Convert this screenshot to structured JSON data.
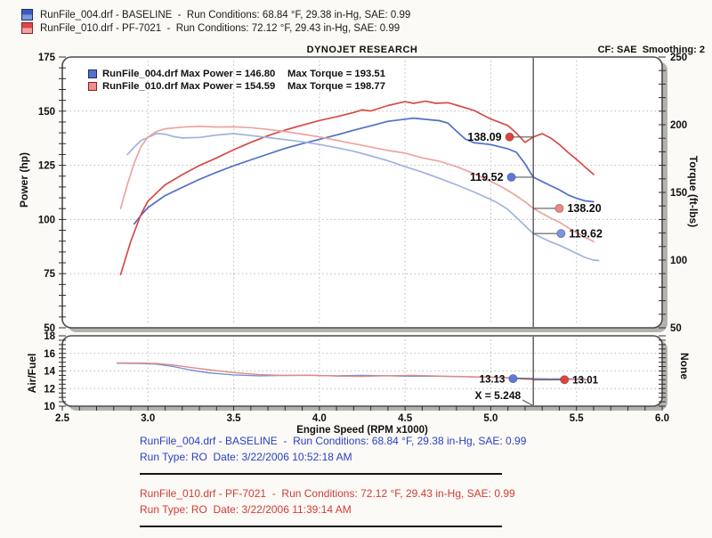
{
  "header": {
    "brand": "DYNOJET RESEARCH",
    "cf_smoothing": "CF: SAE  Smoothing: 2"
  },
  "top_legend": [
    {
      "swatch": "blue",
      "text": "RunFile_004.drf - BASELINE  -  Run Conditions: 68.84 °F, 29.38 in-Hg, SAE: 0.99"
    },
    {
      "swatch": "red",
      "text": "RunFile_010.drf - PF-7021  -  Run Conditions: 72.12 °F, 29.43 in-Hg, SAE: 0.99"
    }
  ],
  "inner_legend": [
    {
      "swatch": "blue",
      "file_power": "RunFile_004.drf Max Power = 146.80",
      "max_torque": "Max Torque = 193.51"
    },
    {
      "swatch": "red",
      "file_power": "RunFile_010.drf Max Power = 154.59",
      "max_torque": "Max Torque = 198.77"
    }
  ],
  "footer_runs": [
    {
      "line1": "RunFile_004.drf - BASELINE  -  Run Conditions: 68.84 °F, 29.38 in-Hg, SAE: 0.99",
      "line2": "Run Type: RO  Date: 3/22/2006 10:52:18 AM"
    },
    {
      "line1": "RunFile_010.drf - PF-7021  -  Run Conditions: 72.12 °F, 29.43 in-Hg, SAE: 0.99",
      "line2": "Run Type: RO  Date: 3/22/2006 11:39:14 AM"
    }
  ],
  "colors": {
    "power_004": "#4f6fc5",
    "power_010": "#d84b45",
    "torque_004": "#9fb3e0",
    "torque_010": "#eda4a0",
    "af_004": "#7b8fd2",
    "af_010": "#e08a85",
    "footer_blue": "#2b3fc4",
    "footer_red": "#d23c34"
  },
  "chart_data": [
    {
      "type": "line",
      "title": "Power and Torque vs Engine Speed",
      "x": {
        "label": "Engine Speed (RPM x1000)",
        "min": 2.5,
        "max": 6.0,
        "ticks": [
          2.5,
          3.0,
          3.5,
          4.0,
          4.5,
          5.0,
          5.5,
          6.0
        ]
      },
      "y_left": {
        "label": "Power (hp)",
        "min": 50,
        "max": 175,
        "ticks": [
          175,
          150,
          125,
          100,
          75,
          50
        ]
      },
      "y_right": {
        "label": "Torque (ft-lbs)",
        "min": 50,
        "max": 250,
        "ticks": [
          250,
          200,
          150,
          100,
          50
        ]
      },
      "grid": true,
      "cursor_x": 5.248,
      "series": [
        {
          "name": "power-004",
          "axis": "left",
          "color": "#4f6fc5",
          "points": [
            [
              2.92,
              98
            ],
            [
              2.96,
              102
            ],
            [
              3.0,
              105.5
            ],
            [
              3.1,
              111
            ],
            [
              3.2,
              114.8
            ],
            [
              3.3,
              118.5
            ],
            [
              3.4,
              121.8
            ],
            [
              3.5,
              124.8
            ],
            [
              3.6,
              127.5
            ],
            [
              3.7,
              130.2
            ],
            [
              3.8,
              132.8
            ],
            [
              3.9,
              135
            ],
            [
              4.0,
              137
            ],
            [
              4.1,
              139
            ],
            [
              4.2,
              141.2
            ],
            [
              4.3,
              143.2
            ],
            [
              4.4,
              145.3
            ],
            [
              4.5,
              146.3
            ],
            [
              4.55,
              146.8
            ],
            [
              4.6,
              146.4
            ],
            [
              4.7,
              145.6
            ],
            [
              4.75,
              144.5
            ],
            [
              4.8,
              140.8
            ],
            [
              4.85,
              137.2
            ],
            [
              4.9,
              135.5
            ],
            [
              5.0,
              134.6
            ],
            [
              5.1,
              132.6
            ],
            [
              5.15,
              131
            ],
            [
              5.2,
              125.7
            ],
            [
              5.248,
              119.52
            ],
            [
              5.3,
              117.5
            ],
            [
              5.35,
              115.6
            ],
            [
              5.4,
              113.7
            ],
            [
              5.45,
              111.4
            ],
            [
              5.5,
              109.8
            ],
            [
              5.55,
              108.6
            ],
            [
              5.6,
              108.2
            ]
          ]
        },
        {
          "name": "power-010",
          "axis": "left",
          "color": "#d84b45",
          "points": [
            [
              2.84,
              74.6
            ],
            [
              2.9,
              90
            ],
            [
              2.96,
              102.5
            ],
            [
              3.0,
              108.5
            ],
            [
              3.1,
              116
            ],
            [
              3.2,
              120.7
            ],
            [
              3.3,
              124.9
            ],
            [
              3.4,
              128.4
            ],
            [
              3.5,
              132.2
            ],
            [
              3.6,
              135.6
            ],
            [
              3.7,
              138.7
            ],
            [
              3.8,
              141.3
            ],
            [
              3.9,
              143.5
            ],
            [
              4.0,
              145.7
            ],
            [
              4.1,
              147.4
            ],
            [
              4.2,
              149.4
            ],
            [
              4.25,
              150.6
            ],
            [
              4.3,
              150.1
            ],
            [
              4.4,
              152.6
            ],
            [
              4.5,
              154.4
            ],
            [
              4.55,
              153.6
            ],
            [
              4.62,
              154.59
            ],
            [
              4.68,
              153.6
            ],
            [
              4.75,
              153.9
            ],
            [
              4.8,
              152.8
            ],
            [
              4.9,
              150.4
            ],
            [
              5.0,
              146.4
            ],
            [
              5.1,
              143.4
            ],
            [
              5.15,
              139.8
            ],
            [
              5.2,
              135.6
            ],
            [
              5.248,
              138.09
            ],
            [
              5.3,
              139.6
            ],
            [
              5.35,
              137.6
            ],
            [
              5.4,
              134.6
            ],
            [
              5.45,
              131
            ],
            [
              5.5,
              127.8
            ],
            [
              5.55,
              124.2
            ],
            [
              5.6,
              120.8
            ]
          ]
        },
        {
          "name": "torque-004",
          "axis": "right",
          "color": "#9fb3e0",
          "points": [
            [
              2.88,
              178
            ],
            [
              2.92,
              183.5
            ],
            [
              2.96,
              188.5
            ],
            [
              3.0,
              190.5
            ],
            [
              3.05,
              193.5
            ],
            [
              3.1,
              193
            ],
            [
              3.15,
              191.2
            ],
            [
              3.2,
              190.2
            ],
            [
              3.3,
              190.6
            ],
            [
              3.4,
              192.4
            ],
            [
              3.5,
              193.4
            ],
            [
              3.6,
              192
            ],
            [
              3.7,
              190.5
            ],
            [
              3.8,
              189
            ],
            [
              3.9,
              187.4
            ],
            [
              4.0,
              185.4
            ],
            [
              4.1,
              183
            ],
            [
              4.2,
              180.4
            ],
            [
              4.3,
              177
            ],
            [
              4.4,
              173.4
            ],
            [
              4.5,
              169
            ],
            [
              4.6,
              165
            ],
            [
              4.7,
              160.4
            ],
            [
              4.8,
              155.6
            ],
            [
              4.9,
              150.4
            ],
            [
              5.0,
              144.8
            ],
            [
              5.05,
              141.5
            ],
            [
              5.1,
              137.4
            ],
            [
              5.15,
              131.4
            ],
            [
              5.2,
              125.4
            ],
            [
              5.248,
              119.62
            ],
            [
              5.3,
              116.4
            ],
            [
              5.35,
              113.4
            ],
            [
              5.4,
              111
            ],
            [
              5.45,
              108
            ],
            [
              5.5,
              105
            ],
            [
              5.55,
              102
            ],
            [
              5.6,
              100
            ],
            [
              5.63,
              99.7
            ]
          ]
        },
        {
          "name": "torque-010",
          "axis": "right",
          "color": "#eda4a0",
          "points": [
            [
              2.84,
              138
            ],
            [
              2.88,
              156
            ],
            [
              2.92,
              172
            ],
            [
              2.96,
              184
            ],
            [
              3.0,
              191
            ],
            [
              3.05,
              195
            ],
            [
              3.1,
              197
            ],
            [
              3.2,
              198.2
            ],
            [
              3.3,
              198.77
            ],
            [
              3.4,
              198.3
            ],
            [
              3.5,
              198.4
            ],
            [
              3.6,
              197.8
            ],
            [
              3.7,
              196.5
            ],
            [
              3.8,
              195
            ],
            [
              3.9,
              193
            ],
            [
              4.0,
              191
            ],
            [
              4.1,
              188.5
            ],
            [
              4.2,
              186
            ],
            [
              4.3,
              183.5
            ],
            [
              4.4,
              181
            ],
            [
              4.5,
              179
            ],
            [
              4.6,
              175.5
            ],
            [
              4.7,
              173
            ],
            [
              4.8,
              169
            ],
            [
              4.9,
              164
            ],
            [
              5.0,
              158
            ],
            [
              5.05,
              155
            ],
            [
              5.1,
              151.4
            ],
            [
              5.15,
              147.4
            ],
            [
              5.2,
              143
            ],
            [
              5.248,
              138.2
            ],
            [
              5.3,
              134.5
            ],
            [
              5.35,
              131
            ],
            [
              5.4,
              128
            ],
            [
              5.45,
              124
            ],
            [
              5.5,
              120.4
            ],
            [
              5.55,
              117
            ],
            [
              5.6,
              113.6
            ]
          ]
        }
      ],
      "markers": [
        {
          "label": "138.09",
          "value": 138.09,
          "axis": "left",
          "dot_rpm": 5.11,
          "side": "left",
          "color": "#e4423d"
        },
        {
          "label": "119.52",
          "value": 119.52,
          "axis": "left",
          "dot_rpm": 5.12,
          "side": "left",
          "color": "#5b79dd"
        },
        {
          "label": "138.20",
          "value": 138.2,
          "axis": "right",
          "dot_rpm": 5.4,
          "side": "right",
          "color": "#ef8885"
        },
        {
          "label": "119.62",
          "value": 119.62,
          "axis": "right",
          "dot_rpm": 5.41,
          "side": "right",
          "color": "#7b94e0"
        }
      ]
    },
    {
      "type": "line",
      "title": "Air/Fuel vs Engine Speed",
      "x": {
        "label": "Engine Speed (RPM x1000)",
        "min": 2.5,
        "max": 6.0,
        "ticks": [
          2.5,
          3.0,
          3.5,
          4.0,
          4.5,
          5.0,
          5.5,
          6.0
        ]
      },
      "y_left": {
        "label": "Air/Fuel",
        "min": 10,
        "max": 18,
        "ticks": [
          18,
          16,
          14,
          12,
          10
        ]
      },
      "y_right": {
        "label": "None"
      },
      "grid": true,
      "cursor_x": 5.248,
      "cursor_label": "X = 5.248",
      "series": [
        {
          "name": "af-004",
          "axis": "left",
          "color": "#7b8fd2",
          "points": [
            [
              2.82,
              14.88
            ],
            [
              2.95,
              14.85
            ],
            [
              3.05,
              14.78
            ],
            [
              3.15,
              14.5
            ],
            [
              3.25,
              14.1
            ],
            [
              3.35,
              13.8
            ],
            [
              3.5,
              13.55
            ],
            [
              3.65,
              13.45
            ],
            [
              3.8,
              13.5
            ],
            [
              3.95,
              13.5
            ],
            [
              4.1,
              13.45
            ],
            [
              4.25,
              13.5
            ],
            [
              4.4,
              13.45
            ],
            [
              4.55,
              13.4
            ],
            [
              4.7,
              13.4
            ],
            [
              4.85,
              13.35
            ],
            [
              5.0,
              13.3
            ],
            [
              5.15,
              13.2
            ],
            [
              5.248,
              13.13
            ],
            [
              5.35,
              13.1
            ],
            [
              5.45,
              13.12
            ],
            [
              5.55,
              13.1
            ]
          ]
        },
        {
          "name": "af-010",
          "axis": "left",
          "color": "#e08a85",
          "points": [
            [
              2.82,
              14.92
            ],
            [
              2.95,
              14.9
            ],
            [
              3.05,
              14.85
            ],
            [
              3.15,
              14.68
            ],
            [
              3.25,
              14.4
            ],
            [
              3.35,
              14.15
            ],
            [
              3.5,
              13.82
            ],
            [
              3.65,
              13.58
            ],
            [
              3.8,
              13.48
            ],
            [
              3.95,
              13.52
            ],
            [
              4.1,
              13.42
            ],
            [
              4.25,
              13.38
            ],
            [
              4.4,
              13.46
            ],
            [
              4.55,
              13.5
            ],
            [
              4.7,
              13.42
            ],
            [
              4.85,
              13.36
            ],
            [
              5.0,
              13.3
            ],
            [
              5.15,
              13.15
            ],
            [
              5.248,
              13.01
            ],
            [
              5.35,
              13.0
            ],
            [
              5.45,
              13.05
            ],
            [
              5.57,
              13.0
            ]
          ]
        }
      ],
      "markers": [
        {
          "label": "13.13",
          "value": 13.13,
          "axis": "left",
          "dot_rpm": 5.13,
          "side": "left",
          "color": "#5b79dd"
        },
        {
          "label": "13.01",
          "value": 13.01,
          "axis": "left",
          "dot_rpm": 5.43,
          "side": "right",
          "color": "#e4423d"
        }
      ]
    }
  ]
}
